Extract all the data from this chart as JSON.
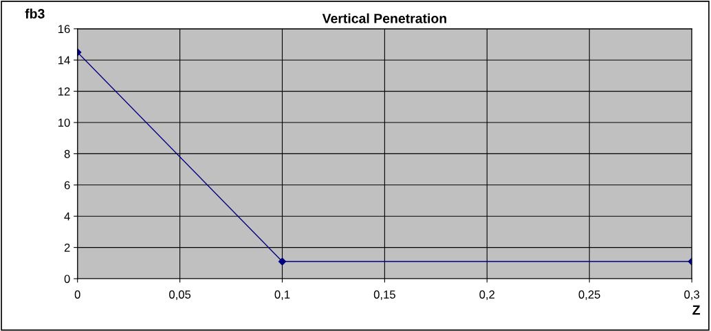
{
  "chart_data": {
    "type": "line",
    "title": "Vertical Penetration",
    "xlabel": "Z",
    "ylabel": "fb3",
    "x": [
      0,
      0.1,
      0.3
    ],
    "series": [
      {
        "color": "#000080",
        "values": [
          14.5,
          1.1,
          1.1
        ]
      }
    ],
    "xlim": [
      0,
      0.3
    ],
    "xticks": [
      0,
      {
        "value": 0.05,
        "label": "0,05"
      },
      {
        "value": 0.1,
        "label": "0,1"
      },
      {
        "value": 0.15,
        "label": "0,15"
      },
      {
        "value": 0.2,
        "label": "0,2"
      },
      {
        "value": 0.25,
        "label": "0,25"
      },
      {
        "value": 0.3,
        "label": "0,3"
      }
    ],
    "ylim": [
      0,
      16
    ],
    "yticks": [
      0,
      2,
      4,
      6,
      8,
      10,
      12,
      14,
      16
    ],
    "grid": true,
    "marker": "diamond",
    "line_style": "solid"
  }
}
